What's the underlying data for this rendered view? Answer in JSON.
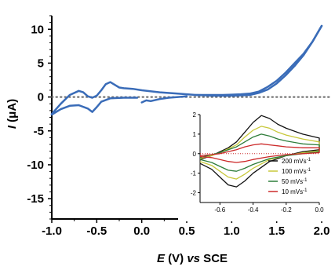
{
  "chart_data": [
    {
      "type": "line",
      "title": "",
      "xlabel": {
        "var": "E",
        "unit": " (V) ",
        "vs": "vs",
        "ref": " SCE"
      },
      "ylabel": {
        "var": "I",
        "unit": " (μA)"
      },
      "xlim": [
        -1.0,
        2.0
      ],
      "ylim": [
        -18,
        12
      ],
      "xticks": [
        -1.0,
        -0.5,
        0.0,
        0.5,
        1.0,
        1.5,
        2.0
      ],
      "xtick_labels": [
        "-1.0",
        "-0.5",
        "0.0",
        "0.5",
        "1.0",
        "1.5",
        "2.0"
      ],
      "yticks": [
        10,
        5,
        0,
        -5,
        -10,
        -15
      ],
      "ytick_labels": [
        "10",
        "5",
        "0",
        "-5",
        "-10",
        "-15"
      ],
      "zero_line": "dotted",
      "colors": {
        "series": "#3a6cb8",
        "zero_line": "#666666"
      },
      "series": [
        {
          "segment": "forward-scan",
          "x": [
            -1.0,
            -0.9,
            -0.8,
            -0.7,
            -0.65,
            -0.6,
            -0.55,
            -0.5,
            -0.45,
            -0.4,
            -0.35,
            -0.3,
            -0.25,
            -0.2,
            -0.1,
            0.0,
            0.2,
            0.4,
            0.6,
            0.8,
            1.0,
            1.2,
            1.3,
            1.4,
            1.5,
            1.6,
            1.7,
            1.8,
            1.9,
            2.0
          ],
          "y": [
            -2.5,
            -1.0,
            0.3,
            0.9,
            0.7,
            0.1,
            -0.1,
            0.2,
            1.0,
            1.9,
            2.2,
            1.8,
            1.4,
            1.3,
            1.2,
            1.0,
            0.7,
            0.5,
            0.3,
            0.2,
            0.2,
            0.3,
            0.6,
            1.1,
            2.0,
            3.2,
            4.6,
            6.2,
            8.2,
            10.5
          ]
        },
        {
          "segment": "reverse-scan",
          "x": [
            2.0,
            1.9,
            1.8,
            1.7,
            1.6,
            1.5,
            1.4,
            1.3,
            1.2,
            1.1,
            1.0,
            0.9,
            0.8,
            0.6
          ],
          "y": [
            10.5,
            8.2,
            6.4,
            5.0,
            3.6,
            2.4,
            1.5,
            0.8,
            0.5,
            0.4,
            0.35,
            0.3,
            0.3,
            0.3
          ]
        },
        {
          "segment": "cathodic-scan-a",
          "x": [
            0.5,
            0.4,
            0.3,
            0.2,
            0.1,
            0.05,
            0.0
          ],
          "y": [
            0.1,
            0.0,
            -0.1,
            -0.3,
            -0.6,
            -0.5,
            -0.8
          ]
        },
        {
          "segment": "cathodic-scan-b",
          "x": [
            -0.05,
            -0.2,
            -0.35,
            -0.45,
            -0.5,
            -0.55,
            -0.6,
            -0.7,
            -0.8,
            -0.9,
            -1.0
          ],
          "y": [
            -0.1,
            -0.1,
            -0.2,
            -0.7,
            -1.5,
            -2.2,
            -1.7,
            -1.2,
            -1.3,
            -1.8,
            -2.6
          ]
        }
      ]
    },
    {
      "type": "line",
      "title": "",
      "xlabel": "",
      "ylabel": "",
      "xlim": [
        -0.72,
        0.0
      ],
      "ylim": [
        -2.5,
        2.0
      ],
      "xticks": [
        -0.6,
        -0.4,
        -0.2,
        0.0
      ],
      "xtick_labels": [
        "-0.6",
        "-0.4",
        "-0.2",
        "0.0"
      ],
      "yticks": [
        2,
        1,
        0,
        -1,
        -2
      ],
      "ytick_labels": [
        "2",
        "1",
        "0",
        "-1",
        "-2"
      ],
      "zero_line": "dotted",
      "legend_placement": "right",
      "series": [
        {
          "name": "200 mVs",
          "name_sup": "-1",
          "color": "#111111",
          "x": [
            -0.72,
            -0.65,
            -0.6,
            -0.55,
            -0.5,
            -0.45,
            -0.4,
            -0.35,
            -0.3,
            -0.25,
            -0.2,
            -0.1,
            0.0
          ],
          "y": [
            -0.3,
            -0.1,
            0.1,
            0.3,
            0.6,
            1.1,
            1.6,
            1.95,
            1.8,
            1.5,
            1.3,
            1.0,
            0.8
          ],
          "x_return": [
            0.0,
            -0.1,
            -0.2,
            -0.3,
            -0.4,
            -0.45,
            -0.5,
            -0.55,
            -0.6,
            -0.65,
            -0.72
          ],
          "y_return": [
            0.2,
            0.1,
            -0.1,
            -0.4,
            -1.0,
            -1.4,
            -1.7,
            -1.6,
            -1.2,
            -0.8,
            -0.5
          ]
        },
        {
          "name": "100 mVs",
          "name_sup": "-1",
          "color": "#c8c83a",
          "x": [
            -0.72,
            -0.65,
            -0.6,
            -0.55,
            -0.5,
            -0.45,
            -0.4,
            -0.35,
            -0.3,
            -0.25,
            -0.2,
            -0.1,
            0.0
          ],
          "y": [
            -0.25,
            -0.1,
            0.05,
            0.25,
            0.45,
            0.85,
            1.2,
            1.4,
            1.3,
            1.1,
            0.95,
            0.75,
            0.6
          ],
          "x_return": [
            0.0,
            -0.1,
            -0.2,
            -0.3,
            -0.4,
            -0.45,
            -0.5,
            -0.55,
            -0.6,
            -0.65,
            -0.72
          ],
          "y_return": [
            0.15,
            0.05,
            -0.1,
            -0.3,
            -0.75,
            -1.05,
            -1.3,
            -1.2,
            -0.9,
            -0.6,
            -0.4
          ]
        },
        {
          "name": "50 mVs",
          "name_sup": "-1",
          "color": "#2e7d3a",
          "x": [
            -0.72,
            -0.65,
            -0.6,
            -0.55,
            -0.5,
            -0.45,
            -0.4,
            -0.35,
            -0.3,
            -0.25,
            -0.2,
            -0.1,
            0.0
          ],
          "y": [
            -0.2,
            -0.05,
            0.05,
            0.2,
            0.35,
            0.6,
            0.85,
            1.0,
            0.9,
            0.75,
            0.65,
            0.5,
            0.45
          ],
          "x_return": [
            0.0,
            -0.1,
            -0.2,
            -0.3,
            -0.4,
            -0.45,
            -0.5,
            -0.55,
            -0.6,
            -0.65,
            -0.72
          ],
          "y_return": [
            0.1,
            0.0,
            -0.1,
            -0.25,
            -0.55,
            -0.75,
            -0.9,
            -0.85,
            -0.65,
            -0.45,
            -0.3
          ]
        },
        {
          "name": "10 mVs",
          "name_sup": "-1",
          "color": "#cc2a2a",
          "x": [
            -0.72,
            -0.65,
            -0.6,
            -0.55,
            -0.5,
            -0.45,
            -0.4,
            -0.35,
            -0.3,
            -0.25,
            -0.2,
            -0.1,
            0.0
          ],
          "y": [
            -0.1,
            -0.05,
            0.0,
            0.1,
            0.2,
            0.35,
            0.45,
            0.5,
            0.45,
            0.4,
            0.35,
            0.3,
            0.3
          ],
          "x_return": [
            0.0,
            -0.1,
            -0.2,
            -0.3,
            -0.4,
            -0.45,
            -0.5,
            -0.55,
            -0.6,
            -0.65,
            -0.72
          ],
          "y_return": [
            0.05,
            0.0,
            -0.05,
            -0.15,
            -0.3,
            -0.4,
            -0.45,
            -0.4,
            -0.3,
            -0.2,
            -0.15
          ]
        }
      ]
    }
  ]
}
